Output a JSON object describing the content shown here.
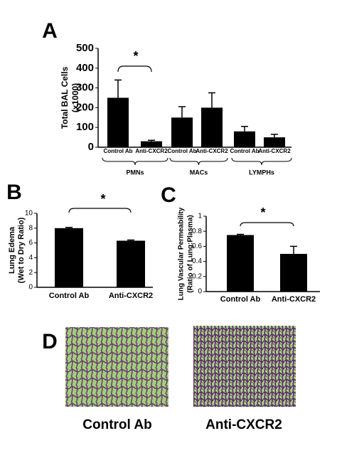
{
  "chart_data": [
    {
      "type": "bar",
      "panel_label": "A",
      "ylabel": [
        "Total BAL Cells",
        "(x1000)"
      ],
      "categories": [
        "Control Ab",
        "Anti-CXCR2",
        "Control Ab",
        "Anti-CXCR2",
        "Control Ab",
        "Anti-CXCR2"
      ],
      "groups": [
        "PMNs",
        "MACs",
        "LYMPHs"
      ],
      "values": [
        250,
        30,
        150,
        200,
        80,
        50
      ],
      "errors": [
        90,
        5,
        55,
        75,
        25,
        15
      ],
      "color": "#000000",
      "ylim": [
        0,
        500
      ],
      "yticks": [
        0,
        100,
        200,
        300,
        400,
        500
      ],
      "annotation": "*"
    },
    {
      "type": "bar",
      "panel_label": "B",
      "ylabel": [
        "Lung Edema",
        "(Wet to Dry Ratio)"
      ],
      "categories": [
        "Control Ab",
        "Anti-CXCR2"
      ],
      "values": [
        8.0,
        6.3
      ],
      "errors": [
        0.1,
        0.1
      ],
      "color": "#000000",
      "ylim": [
        0,
        10
      ],
      "yticks": [
        0,
        2,
        4,
        6,
        8,
        10
      ],
      "annotation": "*"
    },
    {
      "type": "bar",
      "panel_label": "C",
      "ylabel": [
        "Lung Vascular Permeability",
        "(Ratio of Lung:Plasma)"
      ],
      "categories": [
        "Control Ab",
        "Anti-CXCR2"
      ],
      "values": [
        0.75,
        0.5
      ],
      "errors": [
        0.01,
        0.1
      ],
      "color": "#000000",
      "ylim": [
        0,
        1
      ],
      "yticks": [
        0,
        0.2,
        0.4,
        0.6,
        0.8,
        1
      ],
      "annotation": "*"
    }
  ],
  "panel_d": {
    "label": "D",
    "captions": [
      "Control Ab",
      "Anti-CXCR2"
    ]
  }
}
